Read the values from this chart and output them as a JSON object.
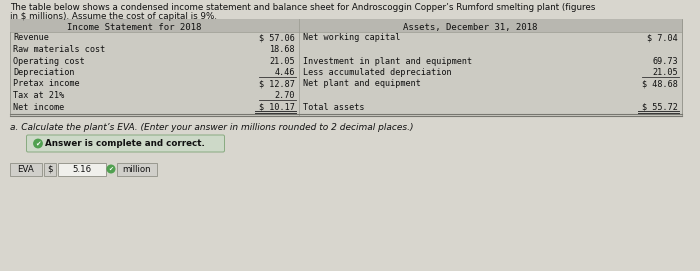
{
  "title_line1": "The table below shows a condensed income statement and balance sheet for Androscoggin Copper’s Rumford smelting plant (figures",
  "title_line2": "in $ millions). Assume the cost of capital is 9%.",
  "table_header_left": "Income Statement for 2018",
  "table_header_right": "Assets, December 31, 2018",
  "income_rows": [
    [
      "Revenue",
      "$ 57.06"
    ],
    [
      "Raw materials cost",
      "18.68"
    ],
    [
      "Operating cost",
      "21.05"
    ],
    [
      "Depreciation",
      "4.46"
    ],
    [
      "Pretax income",
      "$ 12.87"
    ],
    [
      "Tax at 21%",
      "2.70"
    ],
    [
      "Net income",
      "$ 10.17"
    ]
  ],
  "assets_rows": [
    [
      "Net working capital",
      "$ 7.04"
    ],
    [
      "",
      ""
    ],
    [
      "Investment in plant and equipment",
      "69.73"
    ],
    [
      "Less accumulated depreciation",
      "21.05"
    ],
    [
      "Net plant and equipment",
      "$ 48.68"
    ],
    [
      "",
      ""
    ],
    [
      "Total assets",
      "$ 55.72"
    ]
  ],
  "question": "a. Calculate the plant’s EVA. (Enter your answer in millions rounded to 2 decimal places.)",
  "answer_label": "Answer is complete and correct.",
  "eva_label": "EVA",
  "eva_dollar": "$",
  "eva_value": "5.16",
  "eva_unit": "million",
  "bg_color": "#d8d6ce",
  "table_bg": "#cccbc3",
  "header_bg": "#b8b7b0",
  "answer_box_bg": "#cdd9c8",
  "input_box_bg": "#d0cfca"
}
